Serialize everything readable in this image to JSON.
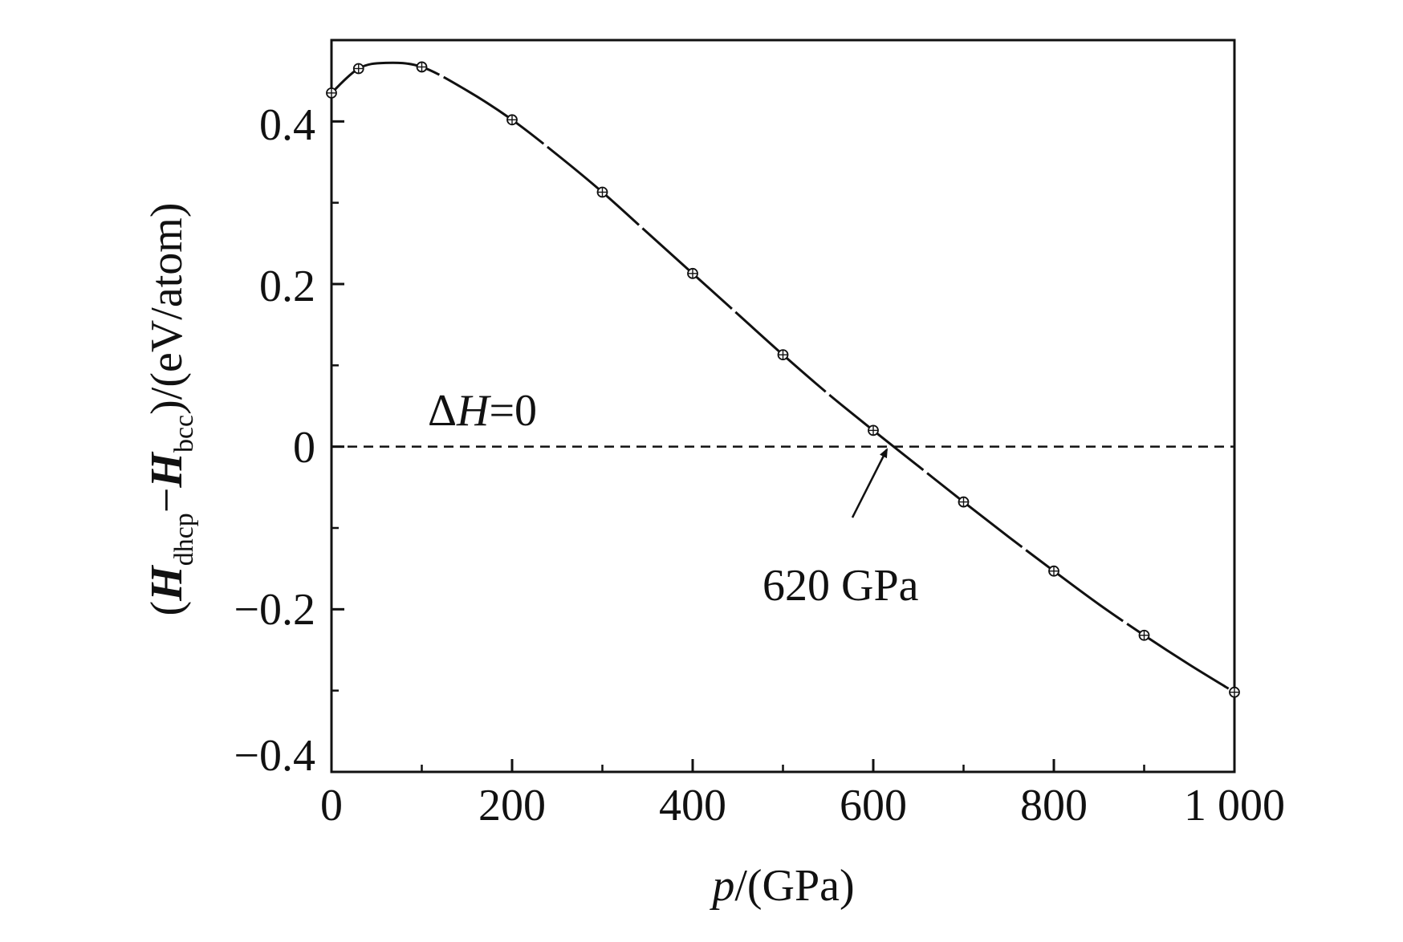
{
  "chart_data": {
    "type": "line",
    "title": "",
    "xlabel": {
      "var": "p",
      "rest": "/(GPa)"
    },
    "ylabel": {
      "open": "(",
      "h1": "H",
      "sub1": "dhcp",
      "minus": "−",
      "h2": "H",
      "sub2": "bcc",
      "rest": ")/(eV/atom)"
    },
    "xlim": [
      0,
      1000
    ],
    "ylim": [
      -0.4,
      0.5
    ],
    "x_ticks": [
      0,
      200,
      400,
      600,
      800,
      1000
    ],
    "x_tick_labels": [
      "0",
      "200",
      "400",
      "600",
      "800",
      "1 000"
    ],
    "x_minor_ticks": [
      100,
      300,
      500,
      700,
      900
    ],
    "y_ticks": [
      -0.4,
      -0.2,
      0,
      0.2,
      0.4
    ],
    "y_tick_labels": [
      "−0.4",
      "−0.2",
      "0",
      "0.2",
      "0.4"
    ],
    "y_minor_ticks": [
      -0.3,
      -0.1,
      0.1,
      0.3
    ],
    "series": [
      {
        "name": "Hdhcp − Hbcc",
        "style": "dashed line with circled-plus markers",
        "x": [
          0,
          30,
          100,
          200,
          300,
          400,
          500,
          600,
          700,
          800,
          900,
          1000
        ],
        "values": [
          0.435,
          0.465,
          0.467,
          0.402,
          0.313,
          0.213,
          0.113,
          0.02,
          -0.068,
          -0.153,
          -0.232,
          -0.302
        ]
      }
    ],
    "curve_x": [
      0,
      30,
      60,
      100,
      150,
      200,
      250,
      300,
      350,
      400,
      450,
      500,
      550,
      600,
      650,
      700,
      750,
      800,
      850,
      900,
      950,
      1000
    ],
    "curve_y": [
      0.435,
      0.465,
      0.472,
      0.467,
      0.438,
      0.402,
      0.359,
      0.313,
      0.263,
      0.213,
      0.163,
      0.113,
      0.065,
      0.02,
      -0.024,
      -0.068,
      -0.111,
      -0.153,
      -0.194,
      -0.232,
      -0.268,
      -0.302
    ],
    "reference_line": {
      "y": 0,
      "style": "dashed"
    },
    "annotations": [
      {
        "id": "dh",
        "delta": "Δ",
        "var": "H",
        "rest": "=0"
      },
      {
        "id": "crossing",
        "text": "620 GPa",
        "x": 620,
        "y": 0
      }
    ]
  }
}
